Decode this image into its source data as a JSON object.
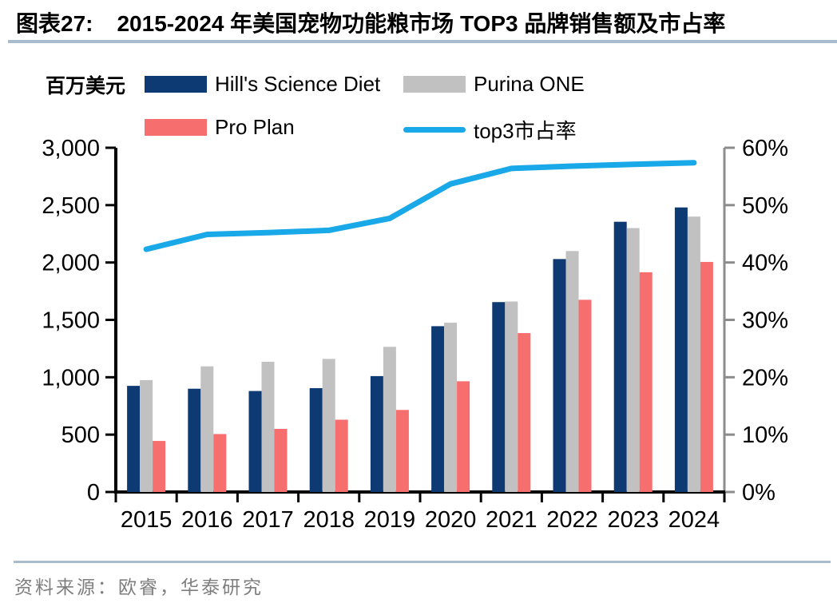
{
  "header": {
    "chart_label": "图表27:",
    "title": "2015-2024 年美国宠物功能粮市场 TOP3 品牌销售额及市占率"
  },
  "chart_data": {
    "type": "bar+line",
    "unit_label": "百万美元",
    "categories": [
      "2015",
      "2016",
      "2017",
      "2018",
      "2019",
      "2020",
      "2021",
      "2022",
      "2023",
      "2024"
    ],
    "series": [
      {
        "name": "Hill's Science Diet",
        "type": "bar",
        "axis": "left",
        "color": "#0e3a73",
        "values": [
          925,
          900,
          880,
          905,
          1010,
          1445,
          1655,
          2030,
          2355,
          2480
        ]
      },
      {
        "name": "Purina ONE",
        "type": "bar",
        "axis": "left",
        "color": "#c1c1c2",
        "values": [
          975,
          1095,
          1135,
          1160,
          1265,
          1475,
          1660,
          2100,
          2300,
          2400
        ]
      },
      {
        "name": "Pro Plan",
        "type": "bar",
        "axis": "left",
        "color": "#f76e6f",
        "values": [
          445,
          505,
          550,
          630,
          715,
          965,
          1385,
          1675,
          1915,
          2005
        ]
      },
      {
        "name": "top3市占率",
        "type": "line",
        "axis": "right",
        "color": "#19a8e8",
        "values": [
          42.3,
          44.9,
          45.2,
          45.6,
          47.7,
          53.7,
          56.4,
          56.8,
          57.1,
          57.4
        ]
      }
    ],
    "left_axis": {
      "min": 0,
      "max": 3000,
      "step": 500,
      "tick_labels": [
        "0",
        "500",
        "1,000",
        "1,500",
        "2,000",
        "2,500",
        "3,000"
      ]
    },
    "right_axis": {
      "min": 0,
      "max": 60,
      "step": 10,
      "tick_labels": [
        "0%",
        "10%",
        "20%",
        "30%",
        "40%",
        "50%",
        "60%"
      ]
    },
    "legend_position": "top",
    "grid": false
  },
  "colors": {
    "axis_black": "#000000",
    "axis_gray": "#8c8c8c",
    "rule_blue": "#a9bcce",
    "source_gray": "#7e7e7e"
  },
  "footer": {
    "source": "资料来源：欧睿，华泰研究"
  }
}
